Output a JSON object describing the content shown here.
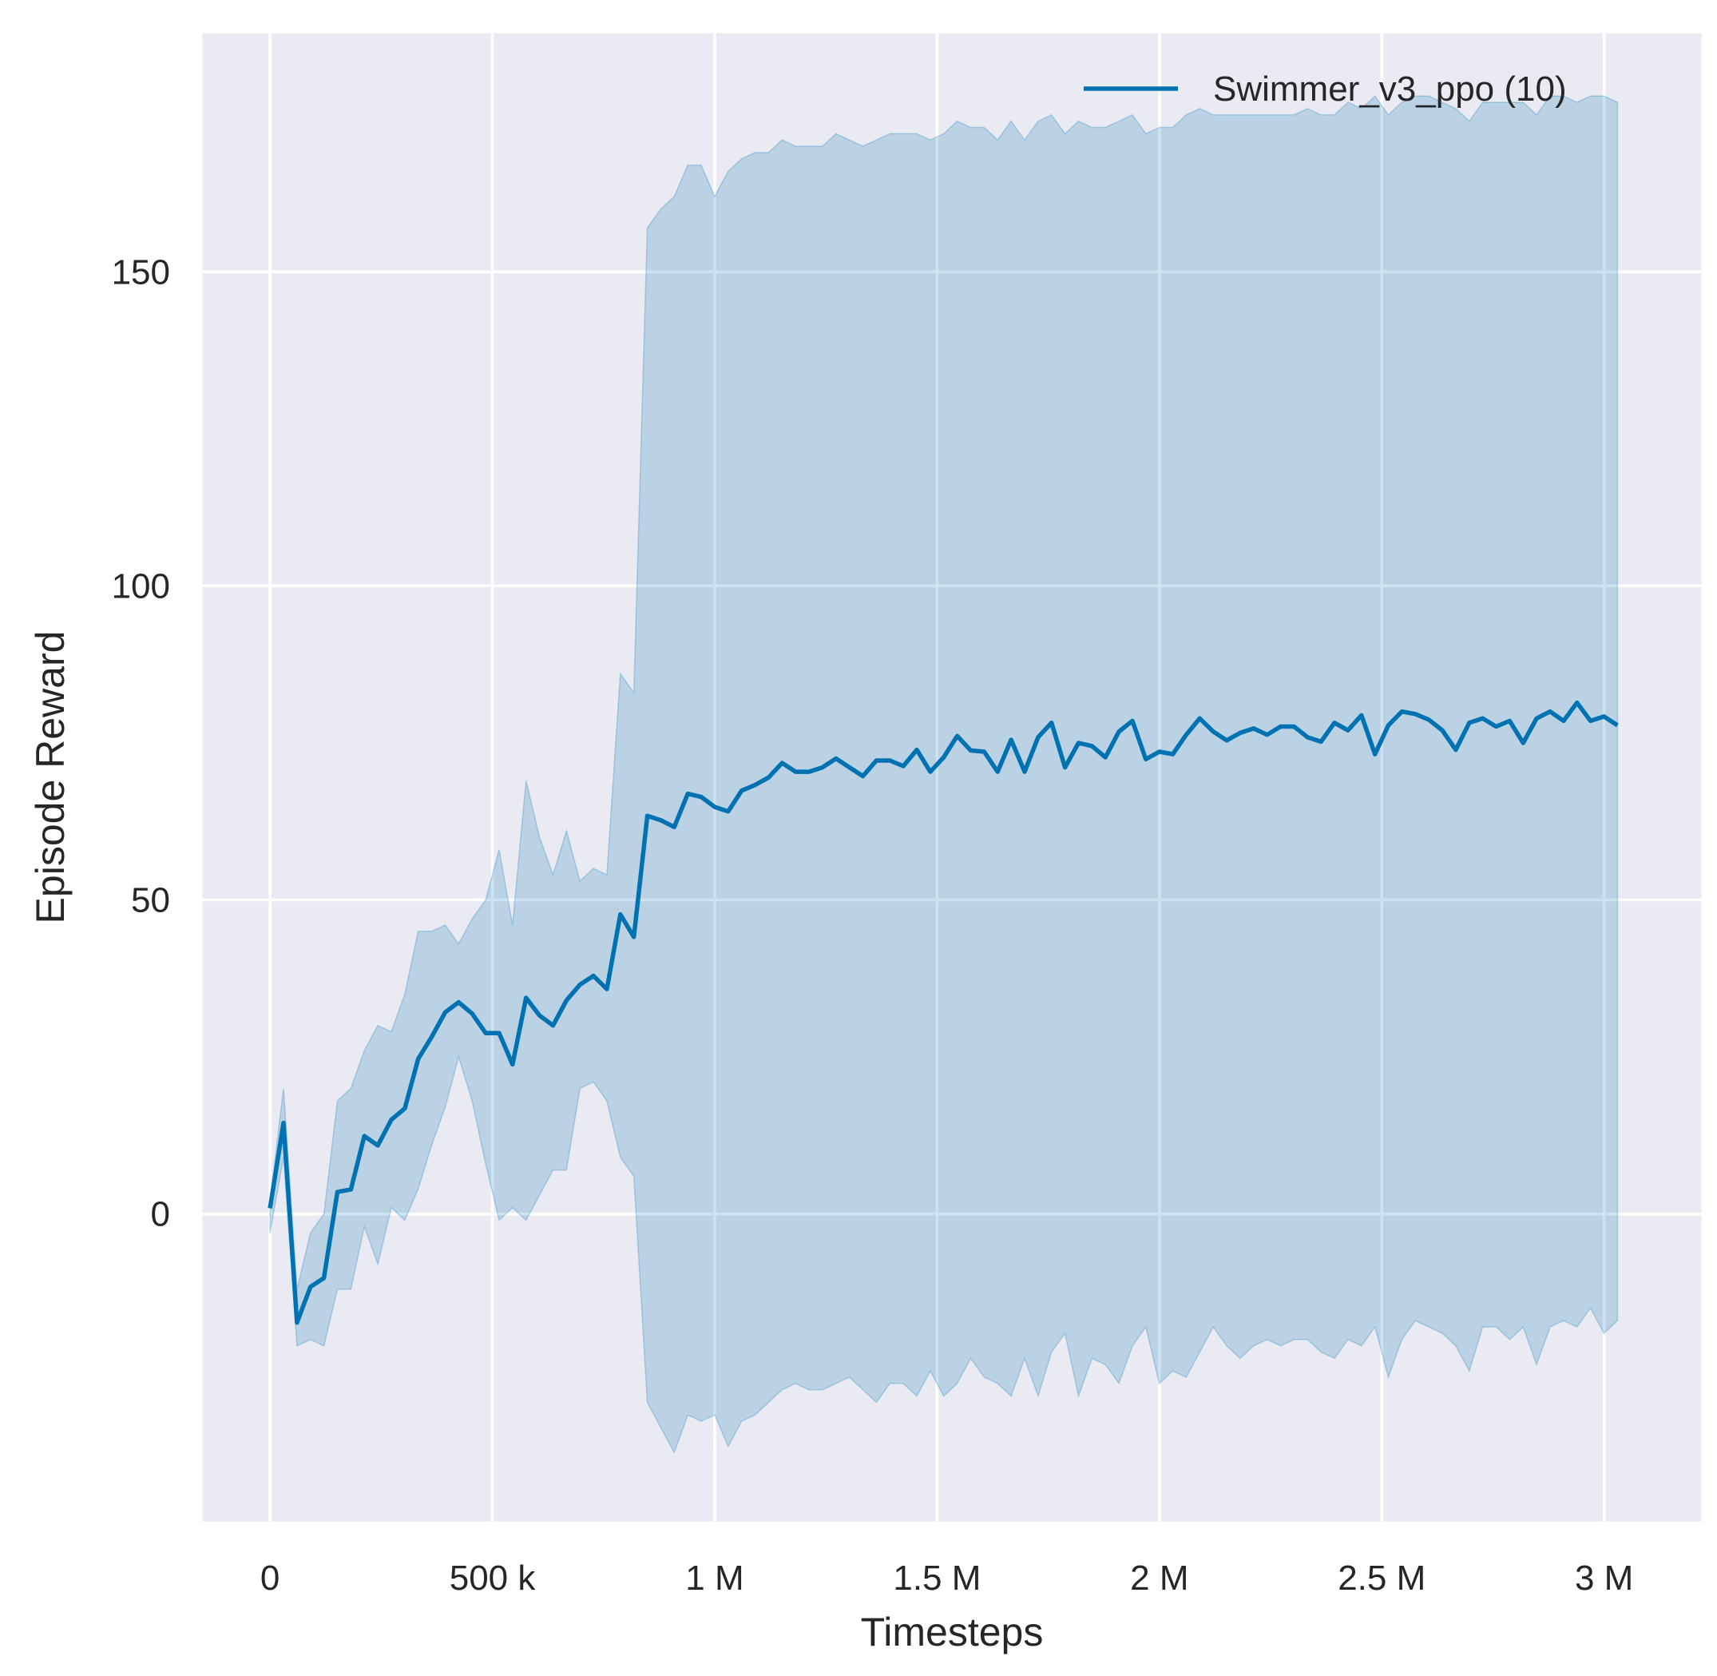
{
  "chart_data": {
    "type": "line",
    "title": "",
    "xlabel": "Timesteps",
    "ylabel": "Episode Reward",
    "xlim": [
      -152000,
      3219000
    ],
    "ylim": [
      -49,
      188
    ],
    "grid": true,
    "legend_position": "top-right",
    "background_color": "#eaeaf2",
    "grid_color": "#ffffff",
    "x_ticks": [
      0,
      500000,
      1000000,
      1500000,
      2000000,
      2500000,
      3000000
    ],
    "x_tick_labels": [
      "0",
      "500 k",
      "1 M",
      "1.5 M",
      "2 M",
      "2.5 M",
      "3 M"
    ],
    "y_ticks": [
      0,
      50,
      100,
      150
    ],
    "y_tick_labels": [
      "0",
      "50",
      "100",
      "150"
    ],
    "x_start": 0,
    "x_step": 30300,
    "series": [
      {
        "name": "Swimmer_v3_ppo (10)",
        "color": "#0072b2",
        "fill_alpha": 0.2,
        "mean": [
          0.9,
          14.5,
          -17.3,
          -11.6,
          -10.2,
          3.5,
          3.9,
          12.4,
          10.9,
          15,
          16.8,
          24.7,
          28.2,
          32.1,
          33.7,
          31.9,
          28.8,
          28.8,
          23.8,
          34.4,
          31.6,
          30,
          34,
          36.5,
          37.9,
          35.8,
          47.7,
          44.1,
          63.4,
          62.7,
          61.6,
          66.9,
          66.4,
          64.8,
          64.1,
          67.4,
          68.3,
          69.5,
          71.8,
          70.4,
          70.4,
          71.1,
          72.5,
          71.1,
          69.7,
          72.2,
          72.2,
          71.3,
          73.9,
          70.4,
          72.7,
          76.1,
          73.8,
          73.6,
          70.4,
          75.5,
          70.4,
          75.9,
          78.2,
          71.1,
          75,
          74.5,
          72.7,
          76.8,
          78.5,
          72.4,
          73.6,
          73.2,
          76.3,
          78.9,
          76.8,
          75.4,
          76.6,
          77.3,
          76.3,
          77.6,
          77.6,
          75.9,
          75.2,
          78.2,
          77,
          79.4,
          73.2,
          77.8,
          80,
          79.6,
          78.7,
          77,
          73.9,
          78.2,
          78.9,
          77.6,
          78.5,
          75,
          78.9,
          80,
          78.5,
          81.4,
          78.5,
          79.2,
          77.8
        ],
        "upper": [
          2,
          20,
          -12,
          -3,
          0,
          18,
          20,
          26,
          30,
          29,
          35,
          45,
          45,
          46,
          43,
          47,
          50,
          58,
          46,
          69,
          60,
          54,
          61,
          53,
          55,
          54,
          86,
          83,
          157,
          160,
          162,
          167,
          167,
          162,
          166,
          168,
          169,
          169,
          171,
          170,
          170,
          170,
          172,
          171,
          170,
          171,
          172,
          172,
          172,
          171,
          172,
          174,
          173,
          173,
          171,
          174,
          171,
          174,
          175,
          172,
          174,
          173,
          173,
          174,
          175,
          172,
          173,
          173,
          175,
          176,
          175,
          175,
          175,
          175,
          175,
          175,
          175,
          176,
          175,
          175,
          177,
          176,
          178,
          175,
          177,
          178,
          178,
          177,
          176,
          174,
          177,
          177,
          177,
          177,
          175,
          178,
          178,
          177,
          178,
          178,
          177
        ],
        "lower": [
          -3,
          9,
          -21,
          -20,
          -21,
          -12,
          -12,
          -2,
          -8,
          1,
          -1,
          4,
          11,
          17,
          25,
          18,
          8,
          -1,
          1,
          -1,
          3,
          7,
          7,
          20,
          21,
          18,
          9,
          6,
          -30,
          -34,
          -38,
          -32,
          -33,
          -32,
          -37,
          -33,
          -32,
          -30,
          -28,
          -27,
          -28,
          -28,
          -27,
          -26,
          -28,
          -30,
          -27,
          -27,
          -29,
          -25,
          -29,
          -27,
          -23,
          -26,
          -27,
          -29,
          -23,
          -29,
          -22,
          -19,
          -29,
          -23,
          -24,
          -27,
          -21,
          -18,
          -27,
          -25,
          -26,
          -22,
          -18,
          -21,
          -23,
          -21,
          -20,
          -21,
          -20,
          -20,
          -22,
          -23,
          -20,
          -21,
          -18,
          -26,
          -20,
          -17,
          -18,
          -19,
          -21,
          -25,
          -18,
          -18,
          -20,
          -18,
          -24,
          -18,
          -17,
          -18,
          -15,
          -19,
          -17
        ]
      }
    ]
  }
}
